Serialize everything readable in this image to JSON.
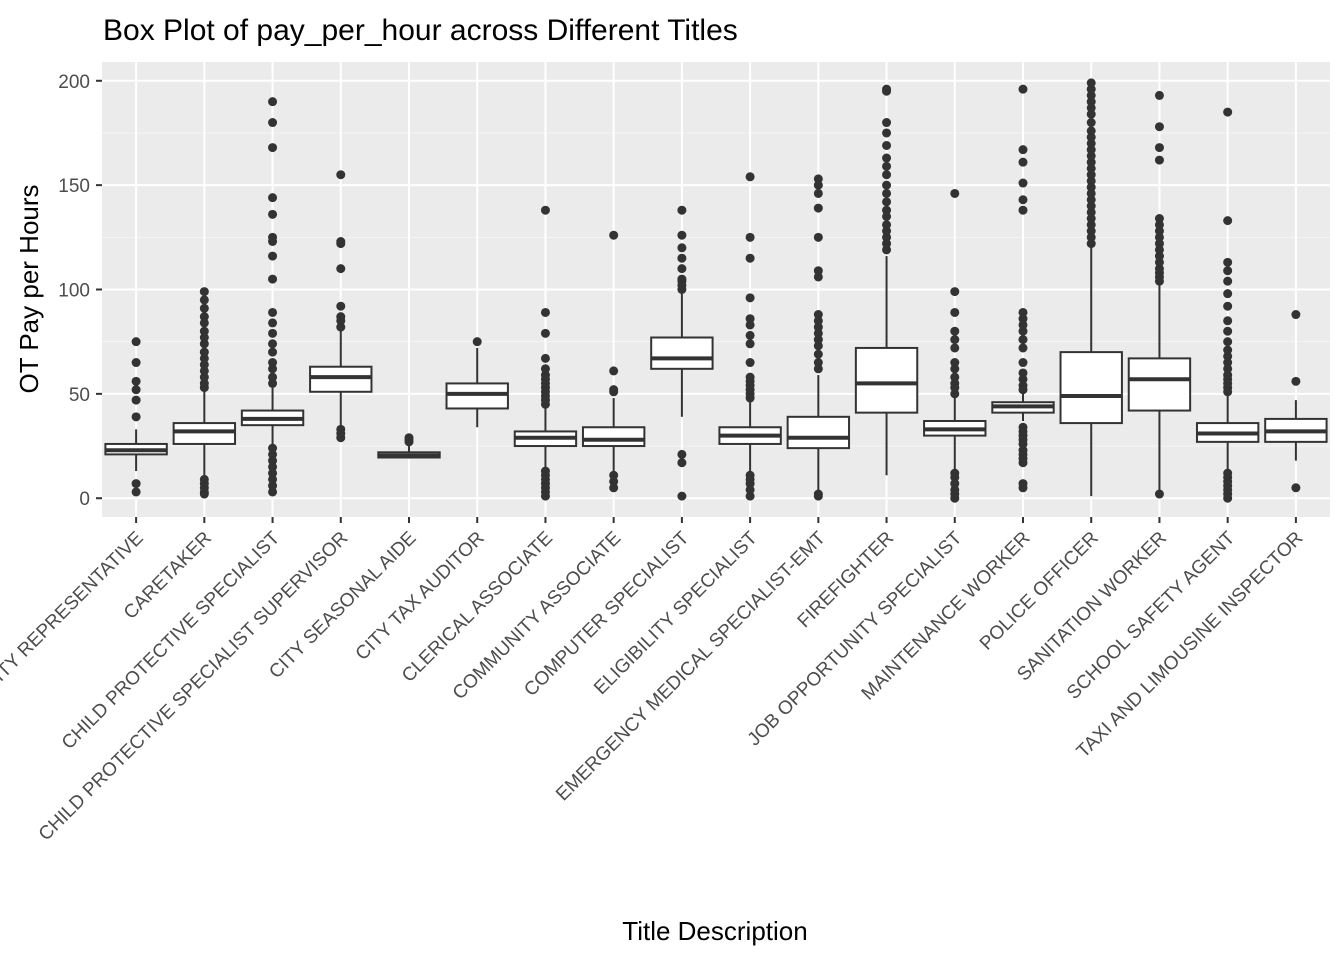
{
  "chart_data": {
    "type": "box",
    "title": "Box Plot of pay_per_hour across Different Titles",
    "xlabel": "Title Description",
    "ylabel": "OT Pay per Hours",
    "ylim": [
      -9,
      209
    ],
    "yticks": [
      0,
      50,
      100,
      150,
      200
    ],
    "grid": true,
    "legend": "none",
    "colors": {
      "panel": "#ebebeb",
      "grid_major": "#ffffff",
      "grid_minor": "#f5f5f5",
      "box_fill": "#ffffff",
      "box_line": "#333333",
      "tick_text": "#4d4d4d"
    },
    "categories": [
      "CITY REPRESENTATIVE",
      "CARETAKER",
      "CHILD PROTECTIVE SPECIALIST",
      "CHILD PROTECTIVE SPECIALIST SUPERVISOR",
      "CITY SEASONAL AIDE",
      "CITY TAX AUDITOR",
      "CLERICAL ASSOCIATE",
      "COMMUNITY ASSOCIATE",
      "COMPUTER SPECIALIST",
      "ELIGIBILITY SPECIALIST",
      "EMERGENCY MEDICAL SPECIALIST-EMT",
      "FIREFIGHTER",
      "JOB OPPORTUNITY SPECIALIST",
      "MAINTENANCE WORKER",
      "POLICE OFFICER",
      "SANITATION WORKER",
      "SCHOOL SAFETY AGENT",
      "TAXI AND LIMOUSINE INSPECTOR"
    ],
    "boxes": [
      {
        "whisker_low": 13,
        "q1": 21,
        "median": 23,
        "q3": 26,
        "whisker_high": 33,
        "outliers": [
          3,
          7,
          39,
          47,
          52,
          56,
          65,
          75
        ]
      },
      {
        "whisker_low": 11,
        "q1": 26,
        "median": 32,
        "q3": 36,
        "whisker_high": 51,
        "outliers": [
          2,
          3,
          5,
          7,
          9,
          53,
          55,
          58,
          61,
          64,
          67,
          70,
          74,
          77,
          80,
          84,
          87,
          91,
          95,
          99
        ]
      },
      {
        "whisker_low": 25,
        "q1": 35,
        "median": 38,
        "q3": 42,
        "whisker_high": 53,
        "outliers": [
          3,
          6,
          9,
          12,
          15,
          18,
          21,
          24,
          55,
          58,
          62,
          65,
          70,
          74,
          79,
          84,
          89,
          105,
          116,
          123,
          125,
          136,
          144,
          168,
          180,
          190
        ]
      },
      {
        "whisker_low": 34,
        "q1": 51,
        "median": 58,
        "q3": 63,
        "whisker_high": 80,
        "outliers": [
          29,
          31,
          33,
          82,
          85,
          87,
          92,
          110,
          122,
          123,
          155
        ]
      },
      {
        "whisker_low": 19,
        "q1": 19.5,
        "median": 20.5,
        "q3": 22,
        "whisker_high": 25,
        "outliers": [
          27,
          28,
          29
        ]
      },
      {
        "whisker_low": 34,
        "q1": 43,
        "median": 50,
        "q3": 55,
        "whisker_high": 72,
        "outliers": [
          75
        ]
      },
      {
        "whisker_low": 14,
        "q1": 25,
        "median": 29,
        "q3": 32,
        "whisker_high": 43,
        "outliers": [
          1,
          3,
          5,
          7,
          9,
          11,
          13,
          45,
          47,
          49,
          51,
          53,
          55,
          57,
          59,
          62,
          67,
          79,
          89,
          138
        ]
      },
      {
        "whisker_low": 12,
        "q1": 25,
        "median": 28,
        "q3": 34,
        "whisker_high": 48,
        "outliers": [
          5,
          8,
          11,
          51,
          52,
          61,
          126
        ]
      },
      {
        "whisker_low": 39,
        "q1": 62,
        "median": 67,
        "q3": 77,
        "whisker_high": 98,
        "outliers": [
          1,
          17,
          21,
          100,
          102,
          104,
          105,
          110,
          115,
          120,
          126,
          138
        ]
      },
      {
        "whisker_low": 13,
        "q1": 26,
        "median": 30,
        "q3": 34,
        "whisker_high": 46,
        "outliers": [
          1,
          4,
          7,
          9,
          11,
          48,
          50,
          52,
          54,
          56,
          58,
          65,
          74,
          78,
          83,
          86,
          96,
          115,
          125,
          154
        ]
      },
      {
        "whisker_low": 3,
        "q1": 24,
        "median": 29,
        "q3": 39,
        "whisker_high": 59,
        "outliers": [
          1,
          2,
          62,
          65,
          69,
          73,
          76,
          79,
          82,
          85,
          88,
          106,
          109,
          125,
          139,
          146,
          150,
          153
        ]
      },
      {
        "whisker_low": 11,
        "q1": 41,
        "median": 55,
        "q3": 72,
        "whisker_high": 116,
        "outliers": [
          119,
          122,
          125,
          128,
          131,
          135,
          138,
          142,
          146,
          150,
          155,
          159,
          163,
          169,
          175,
          180,
          195,
          196
        ]
      },
      {
        "whisker_low": 13,
        "q1": 30,
        "median": 33,
        "q3": 37,
        "whisker_high": 48,
        "outliers": [
          0,
          2,
          4,
          7,
          10,
          12,
          50,
          53,
          55,
          58,
          62,
          65,
          72,
          76,
          80,
          89,
          99,
          146
        ]
      },
      {
        "whisker_low": 37,
        "q1": 41,
        "median": 44,
        "q3": 46,
        "whisker_high": 50,
        "outliers": [
          5,
          7,
          17,
          19,
          21,
          23,
          26,
          28,
          30,
          32,
          34,
          52,
          54,
          57,
          60,
          65,
          72,
          76,
          80,
          83,
          86,
          89,
          138,
          143,
          151,
          161,
          167,
          196
        ]
      },
      {
        "whisker_low": 1,
        "q1": 36,
        "median": 49,
        "q3": 70,
        "whisker_high": 120,
        "outliers": [
          122,
          125,
          128,
          131,
          134,
          137,
          140,
          143,
          146,
          149,
          152,
          155,
          158,
          161,
          164,
          167,
          170,
          173,
          176,
          180,
          184,
          187,
          190,
          193,
          196,
          199
        ]
      },
      {
        "whisker_low": 3,
        "q1": 42,
        "median": 57,
        "q3": 67,
        "whisker_high": 102,
        "outliers": [
          2,
          104,
          106,
          108,
          110,
          113,
          116,
          119,
          122,
          125,
          128,
          131,
          134,
          162,
          168,
          178,
          193
        ]
      },
      {
        "whisker_low": 13,
        "q1": 27,
        "median": 31,
        "q3": 36,
        "whisker_high": 49,
        "outliers": [
          0,
          2,
          4,
          6,
          8,
          10,
          12,
          51,
          53,
          55,
          57,
          59,
          62,
          65,
          68,
          71,
          75,
          80,
          85,
          92,
          98,
          104,
          109,
          113,
          133,
          185
        ]
      },
      {
        "whisker_low": 18,
        "q1": 27,
        "median": 32,
        "q3": 38,
        "whisker_high": 47,
        "outliers": [
          5,
          56,
          88
        ]
      }
    ]
  }
}
